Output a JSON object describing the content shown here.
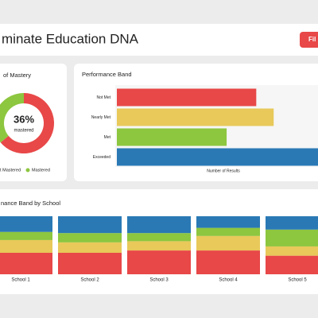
{
  "header": {
    "title": "minate Education DNA",
    "button": "Fil"
  },
  "chart_data": [
    {
      "type": "pie",
      "title": "of Mastery",
      "categories": [
        "ot Mastered",
        "Mastered"
      ],
      "values": [
        64,
        36
      ],
      "colors": [
        "#e84848",
        "#8dc63f"
      ],
      "value_labels": [
        null,
        "36%"
      ],
      "center_caption": "mastered"
    },
    {
      "type": "barh",
      "title": "Performance Band",
      "categories": [
        "Not Met",
        "Nearly Met",
        "Met",
        "Exceeded"
      ],
      "values": [
        40,
        45,
        31.5,
        58
      ],
      "colors": [
        "#e84848",
        "#e8c95a",
        "#8dc63f",
        "#2a79b5"
      ],
      "xlabel": "Number of Results",
      "xlim": [
        0,
        60
      ]
    },
    {
      "type": "stacked",
      "title": "nance Band by School",
      "categories": [
        "School 1",
        "School 2",
        "School 3",
        "School 4",
        "School 5"
      ],
      "ylim": [
        0,
        100
      ],
      "series": [
        {
          "color": "#e84848",
          "values": [
            37,
            37,
            41,
            41,
            32
          ]
        },
        {
          "color": "#e8c95a",
          "values": [
            22,
            18,
            16,
            25,
            16
          ]
        },
        {
          "color": "#8dc63f",
          "values": [
            14,
            16,
            14,
            14,
            29
          ]
        },
        {
          "color": "#2a79b5",
          "values": [
            27,
            29,
            29,
            20,
            23
          ]
        }
      ]
    }
  ]
}
